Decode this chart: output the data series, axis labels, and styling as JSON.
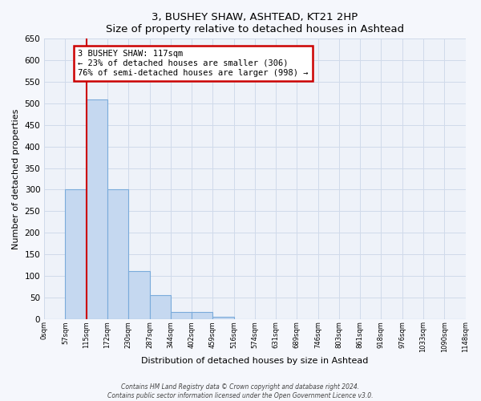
{
  "title": "3, BUSHEY SHAW, ASHTEAD, KT21 2HP",
  "subtitle": "Size of property relative to detached houses in Ashtead",
  "xlabel": "Distribution of detached houses by size in Ashtead",
  "ylabel": "Number of detached properties",
  "bin_edges": [
    0,
    57,
    115,
    172,
    230,
    287,
    344,
    402,
    459,
    516,
    574,
    631,
    689,
    746,
    803,
    861,
    918,
    976,
    1033,
    1090,
    1148
  ],
  "bin_labels": [
    "0sqm",
    "57sqm",
    "115sqm",
    "172sqm",
    "230sqm",
    "287sqm",
    "344sqm",
    "402sqm",
    "459sqm",
    "516sqm",
    "574sqm",
    "631sqm",
    "689sqm",
    "746sqm",
    "803sqm",
    "861sqm",
    "918sqm",
    "976sqm",
    "1033sqm",
    "1090sqm",
    "1148sqm"
  ],
  "counts": [
    0,
    300,
    510,
    300,
    110,
    55,
    15,
    15,
    5,
    0,
    0,
    0,
    0,
    0,
    0,
    0,
    0,
    0,
    0,
    0
  ],
  "bar_color": "#c5d8f0",
  "bar_edge_color": "#7aabdb",
  "vline_x": 115,
  "vline_color": "#cc0000",
  "annotation_title": "3 BUSHEY SHAW: 117sqm",
  "annotation_line1": "← 23% of detached houses are smaller (306)",
  "annotation_line2": "76% of semi-detached houses are larger (998) →",
  "annotation_box_color": "#cc0000",
  "ylim": [
    0,
    650
  ],
  "yticks": [
    0,
    50,
    100,
    150,
    200,
    250,
    300,
    350,
    400,
    450,
    500,
    550,
    600,
    650
  ],
  "grid_color": "#d0daea",
  "bg_color": "#eef2f9",
  "fig_bg_color": "#f5f7fc",
  "footer_line1": "Contains HM Land Registry data © Crown copyright and database right 2024.",
  "footer_line2": "Contains public sector information licensed under the Open Government Licence v3.0."
}
